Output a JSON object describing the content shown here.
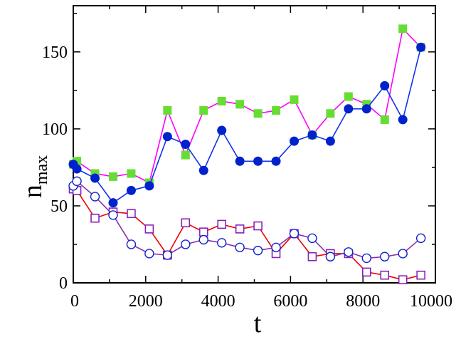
{
  "chart_data": {
    "type": "line",
    "title": "",
    "xlabel": "t",
    "ylabel": "n",
    "ylabel_subscript": "max",
    "xlim": [
      0,
      10000
    ],
    "ylim": [
      0,
      180
    ],
    "xticks": [
      0,
      2000,
      4000,
      6000,
      8000,
      10000
    ],
    "yticks": [
      0,
      50,
      100,
      150
    ],
    "grid": false,
    "legend": "none",
    "series": [
      {
        "marker": "filled-square",
        "line_color": "#ff00ff",
        "marker_color": "#66dd33",
        "x": [
          0,
          100,
          600,
          1100,
          1600,
          2100,
          2600,
          3100,
          3600,
          4100,
          4600,
          5100,
          5600,
          6100,
          6600,
          7100,
          7600,
          8100,
          8600,
          9100,
          9600
        ],
        "y": [
          77,
          79,
          71,
          69,
          71,
          65,
          112,
          83,
          112,
          118,
          116,
          110,
          112,
          119,
          96,
          110,
          121,
          116,
          106,
          165,
          153
        ]
      },
      {
        "marker": "filled-circle",
        "line_color": "#1133ee",
        "marker_color": "#0022cc",
        "x": [
          0,
          100,
          600,
          1100,
          1600,
          2100,
          2600,
          3100,
          3600,
          4100,
          4600,
          5100,
          5600,
          6100,
          6600,
          7100,
          7600,
          8100,
          8600,
          9100,
          9600
        ],
        "y": [
          77,
          74,
          68,
          52,
          60,
          63,
          95,
          90,
          73,
          99,
          79,
          79,
          79,
          92,
          96,
          92,
          113,
          113,
          128,
          106,
          153
        ]
      },
      {
        "marker": "open-square",
        "line_color": "#ee0000",
        "marker_color": "#8822bb",
        "x": [
          0,
          100,
          600,
          1100,
          1600,
          2100,
          2600,
          3100,
          3600,
          4100,
          4600,
          5100,
          5600,
          6100,
          6600,
          7100,
          7600,
          8100,
          8600,
          9100,
          9600
        ],
        "y": [
          61,
          60,
          42,
          46,
          45,
          35,
          18,
          39,
          33,
          38,
          35,
          37,
          19,
          32,
          17,
          19,
          19,
          7,
          5,
          2,
          5
        ]
      },
      {
        "marker": "open-circle",
        "line_color": "#8833aa",
        "marker_color": "#1122cc",
        "x": [
          0,
          100,
          600,
          1100,
          1600,
          2100,
          2600,
          3100,
          3600,
          4100,
          4600,
          5100,
          5600,
          6100,
          6600,
          7100,
          7600,
          8100,
          8600,
          9100,
          9600
        ],
        "y": [
          63,
          66,
          56,
          44,
          25,
          19,
          18,
          25,
          28,
          26,
          23,
          21,
          23,
          32,
          29,
          17,
          20,
          16,
          17,
          19,
          29
        ]
      }
    ]
  }
}
